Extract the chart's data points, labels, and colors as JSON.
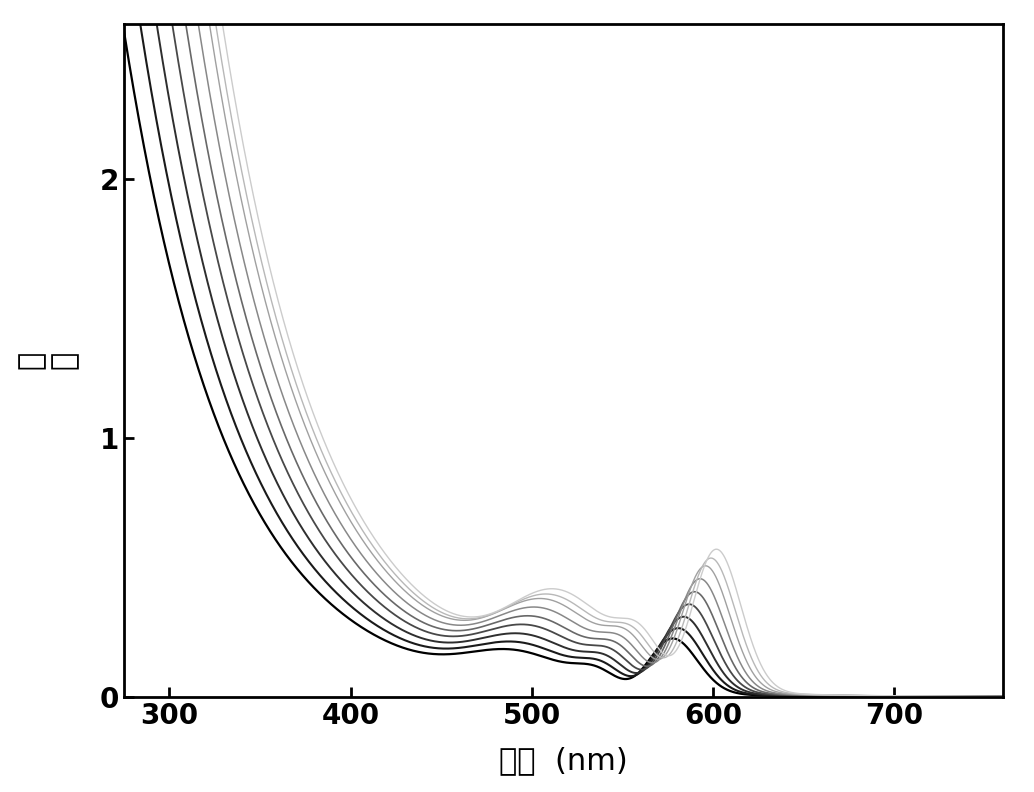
{
  "xlabel": "波长  (nm)",
  "ylabel": "吸\n收",
  "xlim": [
    275,
    760
  ],
  "ylim": [
    0,
    2.6
  ],
  "xticks": [
    300,
    400,
    500,
    600,
    700
  ],
  "yticks": [
    0,
    1,
    2
  ],
  "num_curves": 9,
  "background_color": "#ffffff",
  "line_colors": [
    "#000000",
    "#1a1a1a",
    "#2e2e2e",
    "#484848",
    "#686868",
    "#888888",
    "#a0a0a0",
    "#b8b8b8",
    "#cccccc"
  ],
  "line_widths": [
    1.6,
    1.5,
    1.4,
    1.3,
    1.2,
    1.1,
    1.0,
    1.0,
    1.0
  ],
  "peak_wavelengths": [
    577,
    580,
    583,
    586,
    589,
    592,
    595,
    598,
    601
  ],
  "scale_factors": [
    1.0,
    1.18,
    1.38,
    1.6,
    1.82,
    2.05,
    2.28,
    2.42,
    2.58
  ]
}
